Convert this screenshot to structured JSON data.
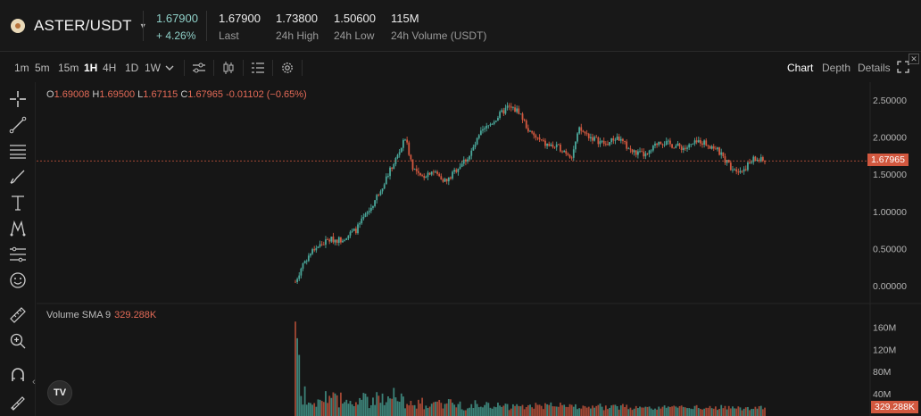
{
  "header": {
    "pair": "ASTER/USDT",
    "price": "1.67900",
    "change": "+ 4.26%",
    "last": {
      "value": "1.67900",
      "label": "Last"
    },
    "high": {
      "value": "1.73800",
      "label": "24h High"
    },
    "low": {
      "value": "1.50600",
      "label": "24h Low"
    },
    "volume": {
      "value": "115M",
      "label": "24h Volume (USDT)"
    }
  },
  "toolbar": {
    "timeframes": [
      "1m",
      "5m",
      "15m",
      "1H",
      "4H",
      "1D",
      "1W"
    ],
    "active_timeframe": "1H",
    "views": [
      "Chart",
      "Depth",
      "Details"
    ],
    "active_view": "Chart"
  },
  "legend": {
    "o_label": "O",
    "o": "1.69008",
    "h_label": "H",
    "h": "1.69500",
    "l_label": "L",
    "l": "1.67115",
    "c_label": "C",
    "c": "1.67965",
    "chg": "-0.01102 (−0.65%)"
  },
  "volume_legend": {
    "label": "Volume SMA 9",
    "value": "329.288K"
  },
  "tv_logo": "TV",
  "colors": {
    "up": "#4aa79a",
    "down": "#d2583f",
    "bg": "#161616",
    "tag": "#d2583f"
  },
  "icons": [
    "crosshair-icon",
    "trendline-icon",
    "fib-lines-icon",
    "brush-icon",
    "text-icon",
    "pattern-icon",
    "measure-icon",
    "emoji-icon",
    "ruler-icon",
    "zoom-in-icon",
    "magnet-icon",
    "lock-draw-icon",
    "indicators-icon",
    "candles-icon",
    "settings-icon",
    "fullscreen-icon"
  ],
  "chart_data": {
    "type": "candlestick",
    "symbol": "ASTER/USDT",
    "interval": "1H",
    "price_axis": {
      "ticks": [
        "2.50000",
        "2.00000",
        "1.50000",
        "1.00000",
        "0.50000",
        "0.00000"
      ],
      "ylim": [
        0.0,
        2.5
      ]
    },
    "volume_axis": {
      "ticks": [
        "160M",
        "120M",
        "80M",
        "40M"
      ]
    },
    "current_price_tag": "1.67965",
    "volume_sma_tag": "329.288K",
    "price_path_keypoints": [
      [
        0,
        0.05
      ],
      [
        4,
        0.3
      ],
      [
        10,
        0.5
      ],
      [
        18,
        0.62
      ],
      [
        24,
        0.62
      ],
      [
        32,
        0.75
      ],
      [
        40,
        1.05
      ],
      [
        48,
        1.45
      ],
      [
        54,
        1.75
      ],
      [
        58,
        1.98
      ],
      [
        62,
        1.6
      ],
      [
        66,
        1.45
      ],
      [
        72,
        1.55
      ],
      [
        80,
        1.4
      ],
      [
        86,
        1.6
      ],
      [
        92,
        1.75
      ],
      [
        98,
        2.05
      ],
      [
        106,
        2.25
      ],
      [
        112,
        2.4
      ],
      [
        118,
        2.35
      ],
      [
        124,
        2.05
      ],
      [
        132,
        1.9
      ],
      [
        140,
        1.85
      ],
      [
        146,
        1.75
      ],
      [
        150,
        2.1
      ],
      [
        156,
        2.0
      ],
      [
        164,
        1.9
      ],
      [
        170,
        2.0
      ],
      [
        178,
        1.8
      ],
      [
        186,
        1.75
      ],
      [
        192,
        1.95
      ],
      [
        198,
        1.9
      ],
      [
        206,
        1.85
      ],
      [
        214,
        1.95
      ],
      [
        222,
        1.85
      ],
      [
        230,
        1.6
      ],
      [
        236,
        1.55
      ],
      [
        242,
        1.7
      ],
      [
        248,
        1.68
      ]
    ],
    "volume_peak": "≈170M (near series start)"
  }
}
